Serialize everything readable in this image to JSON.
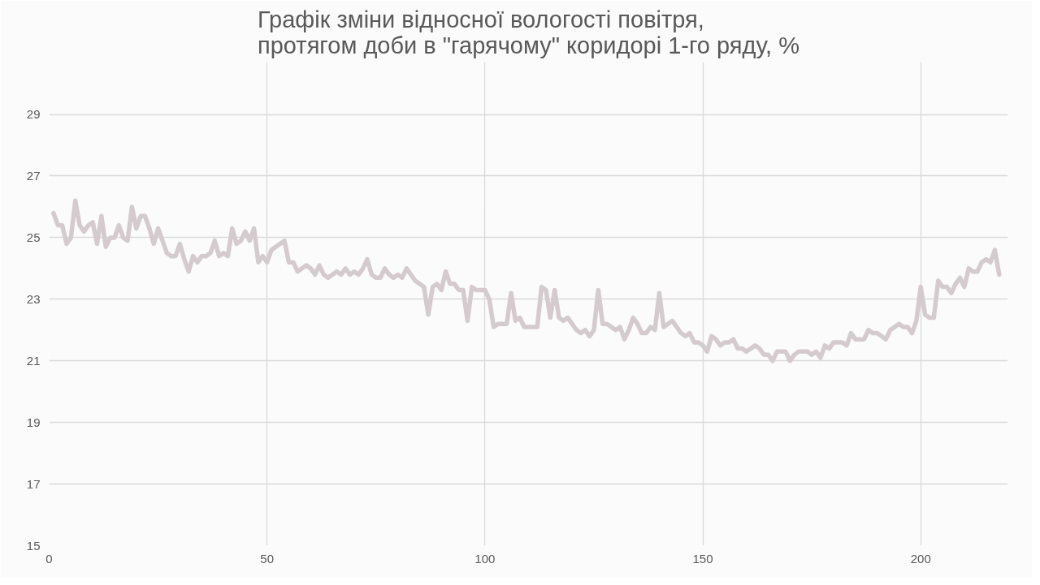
{
  "chart_data": {
    "type": "line",
    "title": "Графік зміни відносної вологості повітря,\nпротягом доби в \"гарячому\" коридорі 1-го ряду, %",
    "xlim": [
      0,
      220
    ],
    "xticks": [
      0,
      50,
      100,
      150,
      200
    ],
    "ylim": [
      15,
      30.7
    ],
    "yticks": [
      15,
      17,
      19,
      21,
      23,
      25,
      27,
      29
    ],
    "grid": true,
    "line_style": "solid",
    "x": [
      1,
      2,
      3,
      4,
      5,
      6,
      7,
      8,
      9,
      10,
      11,
      12,
      13,
      14,
      15,
      16,
      17,
      18,
      19,
      20,
      21,
      22,
      23,
      24,
      25,
      26,
      27,
      28,
      29,
      30,
      31,
      32,
      33,
      34,
      35,
      36,
      37,
      38,
      39,
      40,
      41,
      42,
      43,
      44,
      45,
      46,
      47,
      48,
      49,
      50,
      51,
      52,
      53,
      54,
      55,
      56,
      57,
      58,
      59,
      60,
      61,
      62,
      63,
      64,
      65,
      66,
      67,
      68,
      69,
      70,
      71,
      72,
      73,
      74,
      75,
      76,
      77,
      78,
      79,
      80,
      81,
      82,
      83,
      84,
      85,
      86,
      87,
      88,
      89,
      90,
      91,
      92,
      93,
      94,
      95,
      96,
      97,
      98,
      99,
      100,
      101,
      102,
      103,
      104,
      105,
      106,
      107,
      108,
      109,
      110,
      111,
      112,
      113,
      114,
      115,
      116,
      117,
      118,
      119,
      120,
      121,
      122,
      123,
      124,
      125,
      126,
      127,
      128,
      129,
      130,
      131,
      132,
      133,
      134,
      135,
      136,
      137,
      138,
      139,
      140,
      141,
      142,
      143,
      144,
      145,
      146,
      147,
      148,
      149,
      150,
      151,
      152,
      153,
      154,
      155,
      156,
      157,
      158,
      159,
      160,
      161,
      162,
      163,
      164,
      165,
      166,
      167,
      168,
      169,
      170,
      171,
      172,
      173,
      174,
      175,
      176,
      177,
      178,
      179,
      180,
      181,
      182,
      183,
      184,
      185,
      186,
      187,
      188,
      189,
      190,
      191,
      192,
      193,
      194,
      195,
      196,
      197,
      198,
      199,
      200,
      201,
      202,
      203,
      204,
      205,
      206,
      207,
      208,
      209,
      210,
      211,
      212,
      213,
      214,
      215,
      216,
      217,
      218
    ],
    "series": [
      {
        "color": "#d5cbcf",
        "values": [
          25.8,
          25.4,
          25.4,
          24.8,
          25.0,
          26.2,
          25.4,
          25.2,
          25.4,
          25.5,
          24.8,
          25.7,
          24.7,
          25.0,
          25.0,
          25.4,
          25.0,
          24.9,
          26.0,
          25.3,
          25.7,
          25.7,
          25.3,
          24.8,
          25.3,
          24.9,
          24.5,
          24.4,
          24.4,
          24.8,
          24.3,
          23.9,
          24.4,
          24.2,
          24.4,
          24.4,
          24.5,
          24.9,
          24.4,
          24.5,
          24.4,
          25.3,
          24.8,
          24.9,
          25.2,
          24.9,
          25.3,
          24.2,
          24.4,
          24.2,
          24.6,
          24.7,
          24.8,
          24.9,
          24.2,
          24.2,
          23.9,
          24.0,
          24.1,
          24.0,
          23.8,
          24.1,
          23.8,
          23.7,
          23.8,
          23.9,
          23.8,
          24.0,
          23.8,
          23.9,
          23.8,
          24.0,
          24.3,
          23.8,
          23.7,
          23.7,
          24.0,
          23.8,
          23.7,
          23.8,
          23.7,
          24.0,
          23.8,
          23.6,
          23.5,
          23.4,
          22.5,
          23.4,
          23.5,
          23.3,
          23.9,
          23.5,
          23.5,
          23.3,
          23.3,
          22.3,
          23.4,
          23.3,
          23.3,
          23.3,
          23.0,
          22.1,
          22.2,
          22.2,
          22.2,
          23.2,
          22.3,
          22.4,
          22.1,
          22.1,
          22.1,
          22.1,
          23.4,
          23.3,
          22.4,
          23.3,
          22.4,
          22.3,
          22.4,
          22.2,
          22.0,
          21.9,
          22.0,
          21.8,
          22.0,
          23.3,
          22.2,
          22.2,
          22.1,
          22.0,
          22.1,
          21.7,
          22.0,
          22.4,
          22.2,
          21.9,
          21.9,
          22.1,
          22.0,
          23.2,
          22.1,
          22.2,
          22.3,
          22.1,
          21.9,
          21.8,
          21.9,
          21.6,
          21.6,
          21.5,
          21.3,
          21.8,
          21.7,
          21.5,
          21.6,
          21.6,
          21.7,
          21.4,
          21.4,
          21.3,
          21.4,
          21.5,
          21.4,
          21.2,
          21.2,
          21.0,
          21.3,
          21.3,
          21.3,
          21.0,
          21.2,
          21.3,
          21.3,
          21.3,
          21.2,
          21.3,
          21.1,
          21.5,
          21.4,
          21.6,
          21.6,
          21.6,
          21.5,
          21.9,
          21.7,
          21.7,
          21.7,
          22.0,
          21.9,
          21.9,
          21.8,
          21.7,
          22.0,
          22.1,
          22.2,
          22.1,
          22.1,
          21.9,
          22.3,
          23.4,
          22.5,
          22.4,
          22.4,
          23.6,
          23.4,
          23.4,
          23.2,
          23.5,
          23.7,
          23.4,
          24.0,
          23.9,
          23.9,
          24.2,
          24.3,
          24.2,
          24.6,
          23.8
        ]
      }
    ]
  }
}
